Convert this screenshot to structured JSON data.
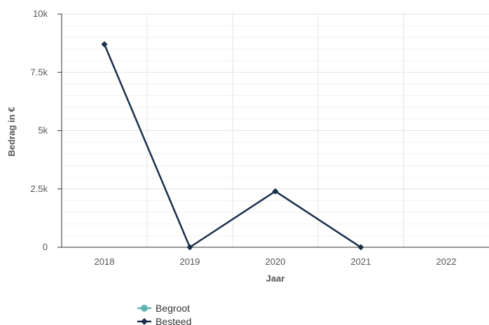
{
  "chart_data": {
    "type": "line",
    "x": [
      "2018",
      "2019",
      "2020",
      "2021",
      "2022"
    ],
    "xlabel": "Jaar",
    "ylabel": "Bedrag in €",
    "ylim": [
      0,
      10000
    ],
    "y_ticks": [
      {
        "value": 0,
        "label": "0"
      },
      {
        "value": 2500,
        "label": "2.5k"
      },
      {
        "value": 5000,
        "label": "5k"
      },
      {
        "value": 7500,
        "label": "7.5k"
      },
      {
        "value": 10000,
        "label": "10k"
      }
    ],
    "grid": true,
    "legend_position": "bottom",
    "series": [
      {
        "name": "Begroot",
        "color": "#5fb3b3",
        "marker": "circle",
        "values": [
          null,
          null,
          null,
          null,
          null
        ]
      },
      {
        "name": "Besteed",
        "color": "#1b2f4b",
        "marker": "diamond",
        "values": [
          8700,
          0,
          2400,
          0,
          null
        ]
      }
    ]
  }
}
